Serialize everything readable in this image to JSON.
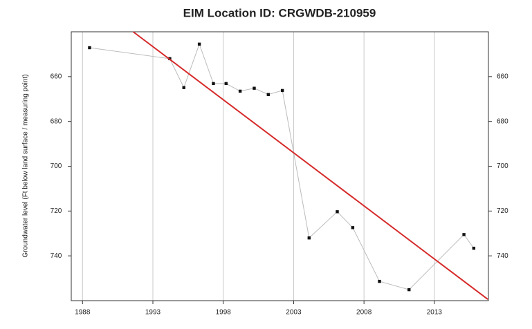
{
  "chart_data": {
    "type": "line",
    "title": "EIM Location ID:  CRGWDB-210959",
    "y_label": "Groundwater level (Ft below land surface / measuring point)",
    "x": [
      1988.5,
      1994.2,
      1995.2,
      1996.3,
      1997.3,
      1998.2,
      1999.2,
      2000.2,
      2001.2,
      2002.2,
      2004.1,
      2006.1,
      2007.2,
      2009.1,
      2011.2,
      2015.1,
      2015.8
    ],
    "series": [
      {
        "color": "#bbbbbb",
        "values": [
          647.1,
          652,
          664.9,
          645.5,
          663.1,
          663.1,
          666.5,
          665.2,
          668,
          666.2,
          732,
          720.3,
          727.4,
          751.4,
          755.1,
          730.5,
          736.6
        ]
      }
    ],
    "trend": {
      "color": "#d62a2a",
      "x": [
        1991.6,
        2016.8
      ],
      "values": [
        640,
        759.4
      ]
    },
    "xlim": [
      1987.2,
      2016.84
    ],
    "xticks": [
      1988,
      1993,
      1998,
      2003,
      2008,
      2013
    ],
    "ylim": [
      760,
      640
    ],
    "yticks": [
      660,
      680,
      700,
      720,
      740
    ],
    "grid": true
  }
}
